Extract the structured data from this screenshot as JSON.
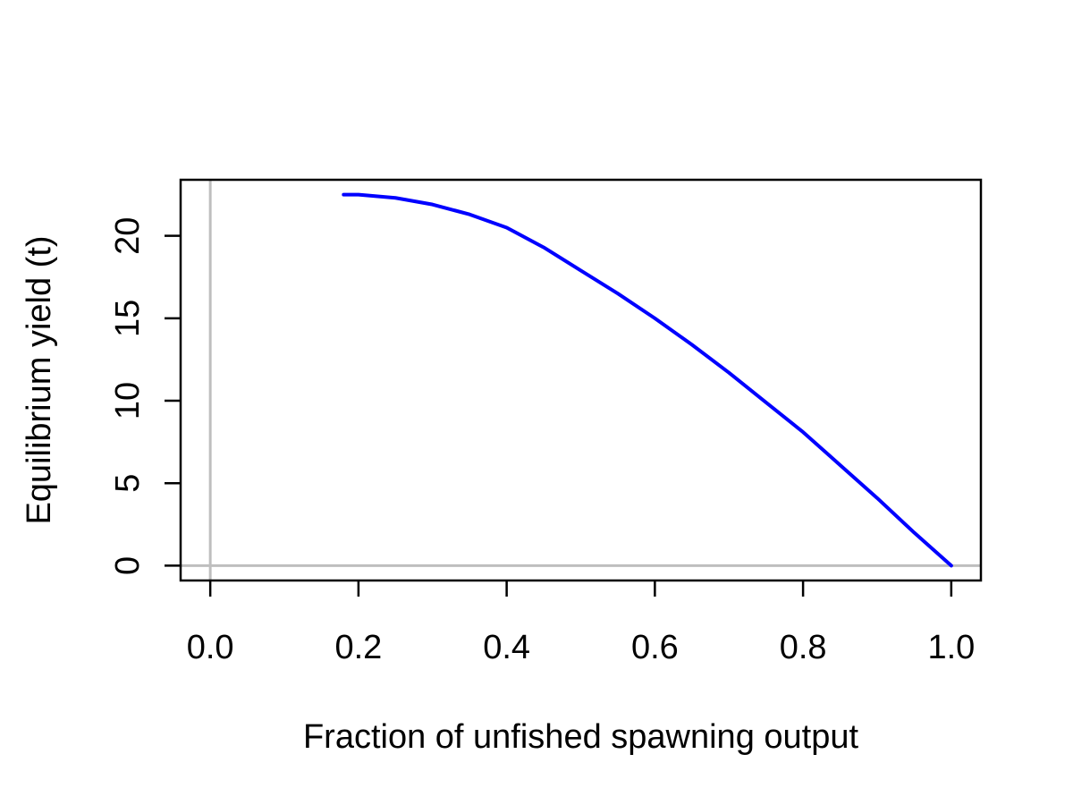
{
  "chart_data": {
    "type": "line",
    "title": "",
    "xlabel": "Fraction of unfished spawning output",
    "ylabel": "Equilibrium yield (t)",
    "xlim": [
      -0.04,
      1.04
    ],
    "ylim": [
      -0.9,
      23.4
    ],
    "x_ticks": [
      0.0,
      0.2,
      0.4,
      0.6,
      0.8,
      1.0
    ],
    "x_tick_labels": [
      "0.0",
      "0.2",
      "0.4",
      "0.6",
      "0.8",
      "1.0"
    ],
    "y_ticks": [
      0,
      5,
      10,
      15,
      20
    ],
    "y_tick_labels": [
      "0",
      "5",
      "10",
      "15",
      "20"
    ],
    "grid": false,
    "reference_lines": {
      "vertical_x": 0,
      "horizontal_y": 0,
      "color": "#bebebe"
    },
    "series": [
      {
        "color": "#0000ff",
        "x": [
          0.18,
          0.2,
          0.25,
          0.3,
          0.35,
          0.4,
          0.45,
          0.5,
          0.55,
          0.6,
          0.65,
          0.7,
          0.75,
          0.8,
          0.85,
          0.9,
          0.95,
          1.0
        ],
        "y": [
          22.5,
          22.5,
          22.3,
          21.9,
          21.3,
          20.5,
          19.3,
          17.9,
          16.5,
          15.0,
          13.4,
          11.7,
          9.9,
          8.1,
          6.1,
          4.1,
          2.0,
          0.0
        ]
      }
    ]
  }
}
